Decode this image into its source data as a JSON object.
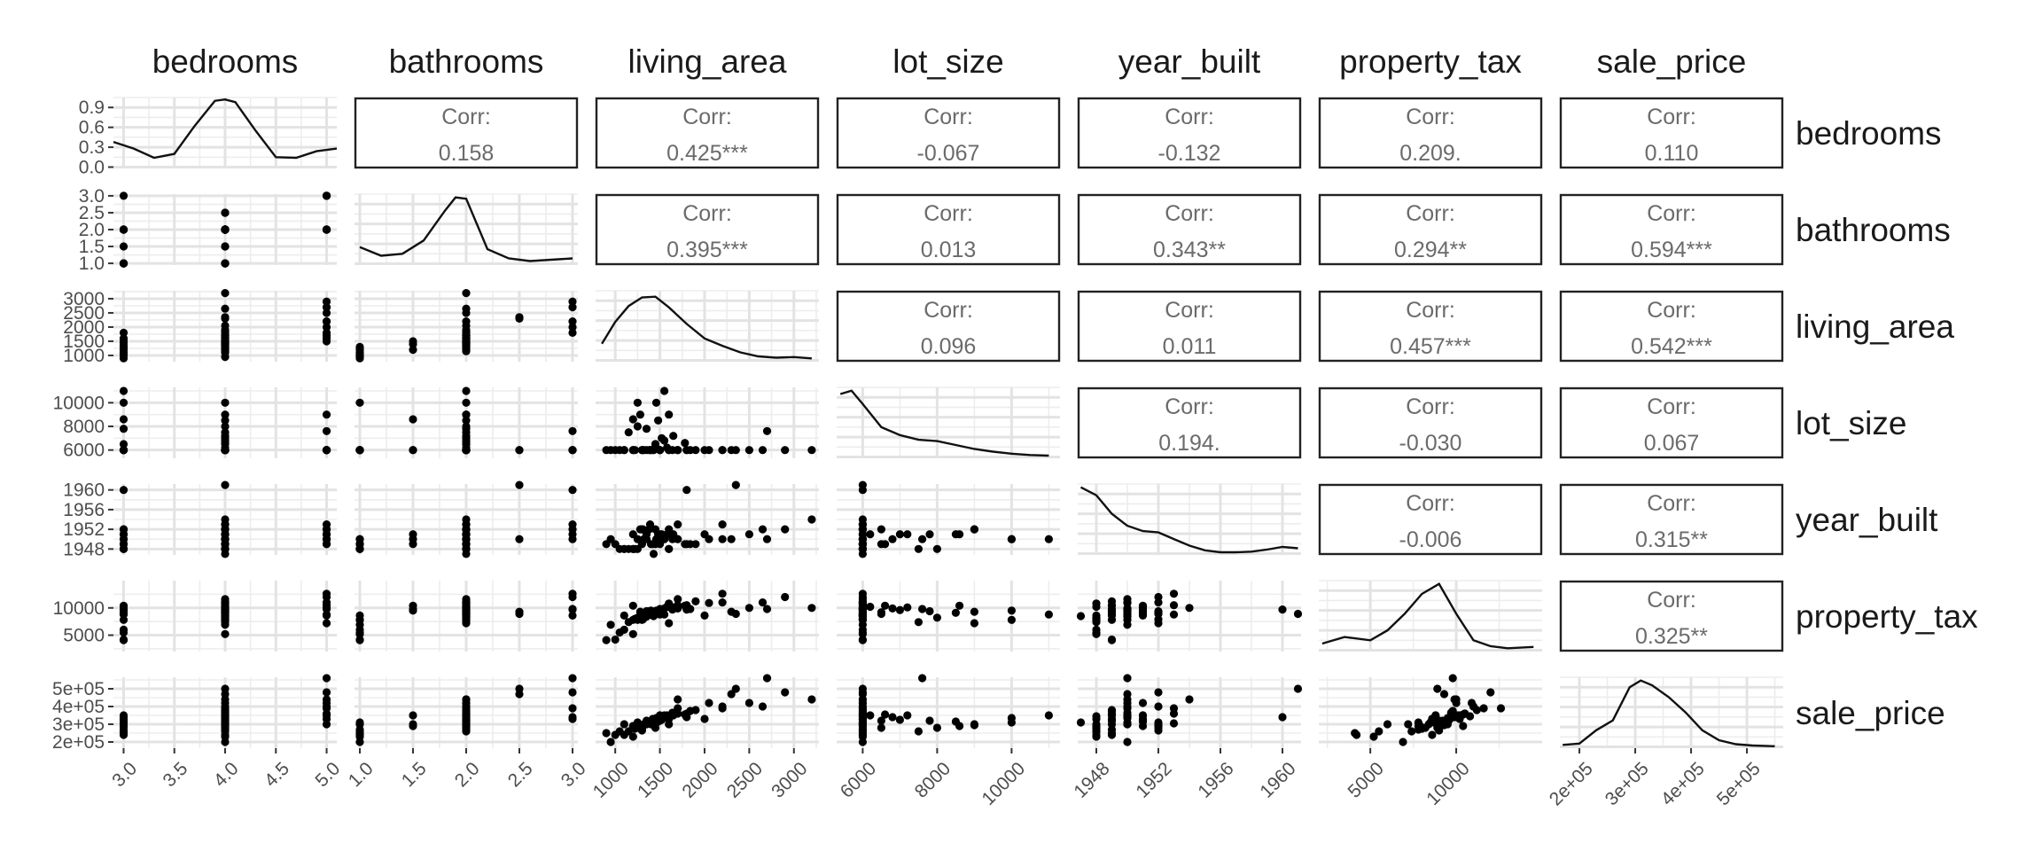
{
  "chart_data": {
    "type": "scatter",
    "variables": [
      "bedrooms",
      "bathrooms",
      "living_area",
      "lot_size",
      "year_built",
      "property_tax",
      "sale_price"
    ],
    "corr_label": "Corr:",
    "correlations": [
      {
        "row": "bedrooms",
        "col": "bathrooms",
        "value": "0.158"
      },
      {
        "row": "bedrooms",
        "col": "living_area",
        "value": "0.425***"
      },
      {
        "row": "bedrooms",
        "col": "lot_size",
        "value": "-0.067"
      },
      {
        "row": "bedrooms",
        "col": "year_built",
        "value": "-0.132"
      },
      {
        "row": "bedrooms",
        "col": "property_tax",
        "value": "0.209."
      },
      {
        "row": "bedrooms",
        "col": "sale_price",
        "value": "0.110"
      },
      {
        "row": "bathrooms",
        "col": "living_area",
        "value": "0.395***"
      },
      {
        "row": "bathrooms",
        "col": "lot_size",
        "value": "0.013"
      },
      {
        "row": "bathrooms",
        "col": "year_built",
        "value": "0.343**"
      },
      {
        "row": "bathrooms",
        "col": "property_tax",
        "value": "0.294**"
      },
      {
        "row": "bathrooms",
        "col": "sale_price",
        "value": "0.594***"
      },
      {
        "row": "living_area",
        "col": "lot_size",
        "value": "0.096"
      },
      {
        "row": "living_area",
        "col": "year_built",
        "value": "0.011"
      },
      {
        "row": "living_area",
        "col": "property_tax",
        "value": "0.457***"
      },
      {
        "row": "living_area",
        "col": "sale_price",
        "value": "0.542***"
      },
      {
        "row": "lot_size",
        "col": "year_built",
        "value": "0.194."
      },
      {
        "row": "lot_size",
        "col": "property_tax",
        "value": "-0.030"
      },
      {
        "row": "lot_size",
        "col": "sale_price",
        "value": "0.067"
      },
      {
        "row": "year_built",
        "col": "property_tax",
        "value": "-0.006"
      },
      {
        "row": "year_built",
        "col": "sale_price",
        "value": "0.315**"
      },
      {
        "row": "property_tax",
        "col": "sale_price",
        "value": "0.325**"
      }
    ],
    "axes": {
      "bedrooms": {
        "range": [
          2.9,
          5.1
        ],
        "ticks": [
          3.0,
          3.5,
          4.0,
          4.5,
          5.0
        ],
        "labels": [
          "3.0",
          "3.5",
          "4.0",
          "4.5",
          "5.0"
        ]
      },
      "bathrooms": {
        "range": [
          0.95,
          3.05
        ],
        "ticks": [
          1.0,
          1.5,
          2.0,
          2.5,
          3.0
        ],
        "labels": [
          "1.0",
          "1.5",
          "2.0",
          "2.5",
          "3.0"
        ]
      },
      "living_area": {
        "range": [
          780,
          3280
        ],
        "ticks": [
          1000,
          1500,
          2000,
          2500,
          3000
        ],
        "labels": [
          "1000",
          "1500",
          "2000",
          "2500",
          "3000"
        ]
      },
      "lot_size": {
        "range": [
          5300,
          11300
        ],
        "ticks": [
          6000,
          8000,
          10000
        ],
        "labels": [
          "6000",
          "8000",
          "10000"
        ]
      },
      "year_built": {
        "range": [
          1946.8,
          1961.2
        ],
        "ticks": [
          1948,
          1952,
          1956,
          1960
        ],
        "labels": [
          "1948",
          "1952",
          "1956",
          "1960"
        ]
      },
      "property_tax": {
        "range": [
          2000,
          15000
        ],
        "ticks": [
          5000,
          10000
        ],
        "labels": [
          "5000",
          "10000"
        ]
      },
      "sale_price": {
        "range": [
          165000,
          565000
        ],
        "ticks": [
          200000,
          300000,
          400000,
          500000
        ],
        "labels": [
          "2e+05",
          "3e+05",
          "4e+05",
          "5e+05"
        ]
      }
    },
    "diag_density_axis": {
      "ticks": [
        0,
        0.3,
        0.6,
        0.9
      ],
      "labels": [
        "0.0",
        "0.3",
        "0.6",
        "0.9"
      ],
      "range": [
        -0.02,
        1.05
      ]
    },
    "densities": {
      "bedrooms": {
        "x": [
          2.9,
          3.1,
          3.3,
          3.5,
          3.7,
          3.9,
          4.0,
          4.1,
          4.3,
          4.5,
          4.7,
          4.9,
          5.1
        ],
        "y": [
          0.38,
          0.28,
          0.14,
          0.2,
          0.62,
          1.0,
          1.02,
          0.98,
          0.55,
          0.15,
          0.14,
          0.24,
          0.28
        ]
      },
      "bathrooms": {
        "x": [
          1.0,
          1.2,
          1.4,
          1.6,
          1.8,
          1.9,
          2.0,
          2.1,
          2.2,
          2.4,
          2.6,
          2.8,
          3.0
        ],
        "y": [
          0.25,
          0.12,
          0.15,
          0.35,
          0.8,
          1.0,
          0.98,
          0.6,
          0.22,
          0.08,
          0.04,
          0.06,
          0.08
        ]
      },
      "living_area": {
        "x": [
          850,
          1000,
          1150,
          1300,
          1450,
          1600,
          1800,
          2000,
          2200,
          2400,
          2600,
          2800,
          3000,
          3200
        ],
        "y": [
          0.25,
          0.58,
          0.82,
          0.95,
          0.96,
          0.8,
          0.55,
          0.33,
          0.22,
          0.12,
          0.06,
          0.04,
          0.05,
          0.03
        ]
      },
      "lot_size": {
        "x": [
          5400,
          5700,
          6000,
          6500,
          7000,
          7500,
          8000,
          8500,
          9000,
          9500,
          10000,
          10500,
          11000
        ],
        "y": [
          0.95,
          1.0,
          0.8,
          0.45,
          0.33,
          0.26,
          0.24,
          0.18,
          0.12,
          0.08,
          0.05,
          0.03,
          0.02
        ]
      },
      "year_built": {
        "x": [
          1947,
          1948,
          1949,
          1950,
          1951,
          1952,
          1953,
          1954,
          1955,
          1956,
          1957,
          1958,
          1959,
          1960,
          1961
        ],
        "y": [
          1.0,
          0.88,
          0.6,
          0.42,
          0.34,
          0.32,
          0.22,
          0.12,
          0.05,
          0.02,
          0.02,
          0.03,
          0.06,
          0.1,
          0.08
        ]
      },
      "property_tax": {
        "x": [
          2200,
          3500,
          5000,
          6000,
          7000,
          8000,
          9000,
          10000,
          11000,
          12000,
          13000,
          14500
        ],
        "y": [
          0.1,
          0.2,
          0.15,
          0.3,
          0.55,
          0.85,
          1.0,
          0.55,
          0.15,
          0.06,
          0.03,
          0.05
        ]
      },
      "sale_price": {
        "x": [
          170000,
          200000,
          230000,
          260000,
          290000,
          310000,
          330000,
          360000,
          390000,
          420000,
          450000,
          480000,
          510000,
          550000
        ],
        "y": [
          0.03,
          0.05,
          0.25,
          0.4,
          0.9,
          1.0,
          0.93,
          0.75,
          0.52,
          0.25,
          0.1,
          0.04,
          0.02,
          0.01
        ]
      }
    },
    "observations": [
      [
        4,
        2.0,
        1320,
        6000,
        1950,
        8900,
        300000
      ],
      [
        4,
        2.0,
        1450,
        6500,
        1949,
        9200,
        320000
      ],
      [
        4,
        2.0,
        1200,
        6000,
        1948,
        7800,
        290000
      ],
      [
        4,
        2.0,
        1650,
        7200,
        1951,
        10100,
        350000
      ],
      [
        4,
        2.0,
        1380,
        6000,
        1952,
        9400,
        310000
      ],
      [
        4,
        2.0,
        1250,
        8000,
        1948,
        8200,
        280000
      ],
      [
        4,
        2.0,
        1550,
        6800,
        1950,
        9900,
        340000
      ],
      [
        4,
        2.0,
        1420,
        6000,
        1949,
        8600,
        330000
      ],
      [
        4,
        2.0,
        1700,
        6000,
        1953,
        10500,
        360000
      ],
      [
        4,
        2.0,
        1150,
        7500,
        1948,
        7400,
        260000
      ],
      [
        4,
        2.0,
        1480,
        8500,
        1951,
        9100,
        315000
      ],
      [
        4,
        2.0,
        1350,
        6000,
        1950,
        8400,
        300000
      ],
      [
        4,
        2.0,
        1900,
        6000,
        1949,
        11200,
        380000
      ],
      [
        4,
        2.0,
        1280,
        9000,
        1952,
        9300,
        295000
      ],
      [
        4,
        2.0,
        1600,
        6000,
        1948,
        10800,
        345000
      ],
      [
        4,
        2.0,
        2050,
        6000,
        1950,
        10900,
        420000
      ],
      [
        4,
        2.0,
        1520,
        7000,
        1951,
        9600,
        325000
      ],
      [
        4,
        2.0,
        1390,
        6000,
        1953,
        8800,
        305000
      ],
      [
        4,
        2.0,
        1780,
        6600,
        1949,
        10400,
        355000
      ],
      [
        4,
        2.0,
        1220,
        6000,
        1948,
        8000,
        275000
      ],
      [
        4,
        2.0,
        1460,
        10000,
        1950,
        9500,
        335000
      ],
      [
        4,
        2.0,
        1310,
        6000,
        1952,
        7900,
        290000
      ],
      [
        4,
        2.0,
        1580,
        6200,
        1951,
        10200,
        350000
      ],
      [
        4,
        2.0,
        1640,
        6000,
        1950,
        9700,
        365000
      ],
      [
        4,
        2.0,
        3200,
        6000,
        1954,
        10000,
        440000
      ],
      [
        4,
        2.0,
        1430,
        6000,
        1947,
        8500,
        310000
      ],
      [
        4,
        2.0,
        2650,
        6000,
        1952,
        11000,
        400000
      ],
      [
        4,
        2.0,
        1840,
        6000,
        1949,
        9800,
        375000
      ],
      [
        4,
        2.0,
        1700,
        6000,
        1950,
        11600,
        390000
      ],
      [
        4,
        2.0,
        1500,
        6000,
        1951,
        9000,
        320000
      ],
      [
        4,
        2.5,
        2350,
        6000,
        1961,
        8900,
        500000
      ],
      [
        4,
        2.5,
        2300,
        6000,
        1950,
        9300,
        470000
      ],
      [
        4,
        1.0,
        1100,
        6000,
        1948,
        8600,
        240000
      ],
      [
        4,
        1.0,
        1300,
        6000,
        1949,
        7800,
        270000
      ],
      [
        4,
        1.0,
        950,
        6000,
        1950,
        6900,
        200000
      ],
      [
        4,
        1.0,
        1200,
        6000,
        1948,
        5200,
        230000
      ],
      [
        4,
        1.5,
        1400,
        6000,
        1949,
        9500,
        300000
      ],
      [
        4,
        1.5,
        1500,
        6000,
        1950,
        9800,
        350000
      ],
      [
        3,
        1.0,
        900,
        6000,
        1949,
        4100,
        250000
      ],
      [
        3,
        1.0,
        1050,
        6000,
        1948,
        5500,
        260000
      ],
      [
        3,
        1.0,
        1250,
        10000,
        1950,
        7800,
        310000
      ],
      [
        3,
        2.0,
        1450,
        6500,
        1952,
        8900,
        280000
      ],
      [
        3,
        2.0,
        1350,
        7800,
        1951,
        9400,
        320000
      ],
      [
        3,
        2.0,
        1600,
        6000,
        1948,
        10200,
        330000
      ],
      [
        3,
        3.0,
        1800,
        6000,
        1960,
        9700,
        340000
      ],
      [
        3,
        1.5,
        1200,
        8600,
        1951,
        10400,
        290000
      ],
      [
        3,
        1.0,
        1000,
        6000,
        1949,
        4200,
        240000
      ],
      [
        3,
        2.0,
        1550,
        11000,
        1950,
        8800,
        350000
      ],
      [
        3,
        1.0,
        1100,
        6000,
        1948,
        6000,
        300000
      ],
      [
        3,
        2.0,
        1300,
        6000,
        1952,
        9000,
        265000
      ],
      [
        5,
        2.0,
        2200,
        6000,
        1950,
        11000,
        400000
      ],
      [
        5,
        3.0,
        2900,
        6000,
        1952,
        12000,
        480000
      ],
      [
        5,
        2.0,
        2500,
        6000,
        1951,
        10000,
        420000
      ],
      [
        5,
        3.0,
        2700,
        7600,
        1950,
        9800,
        560000
      ],
      [
        5,
        2.0,
        1800,
        6000,
        1949,
        10500,
        360000
      ],
      [
        5,
        3.0,
        2000,
        6000,
        1951,
        8600,
        330000
      ],
      [
        5,
        2.0,
        1700,
        6000,
        1950,
        9900,
        440000
      ],
      [
        5,
        2.0,
        1600,
        9000,
        1952,
        7200,
        300000
      ],
      [
        5,
        3.0,
        2200,
        6000,
        1953,
        12600,
        390000
      ],
      [
        5,
        2.0,
        1500,
        6000,
        1949,
        8800,
        350000
      ]
    ]
  }
}
